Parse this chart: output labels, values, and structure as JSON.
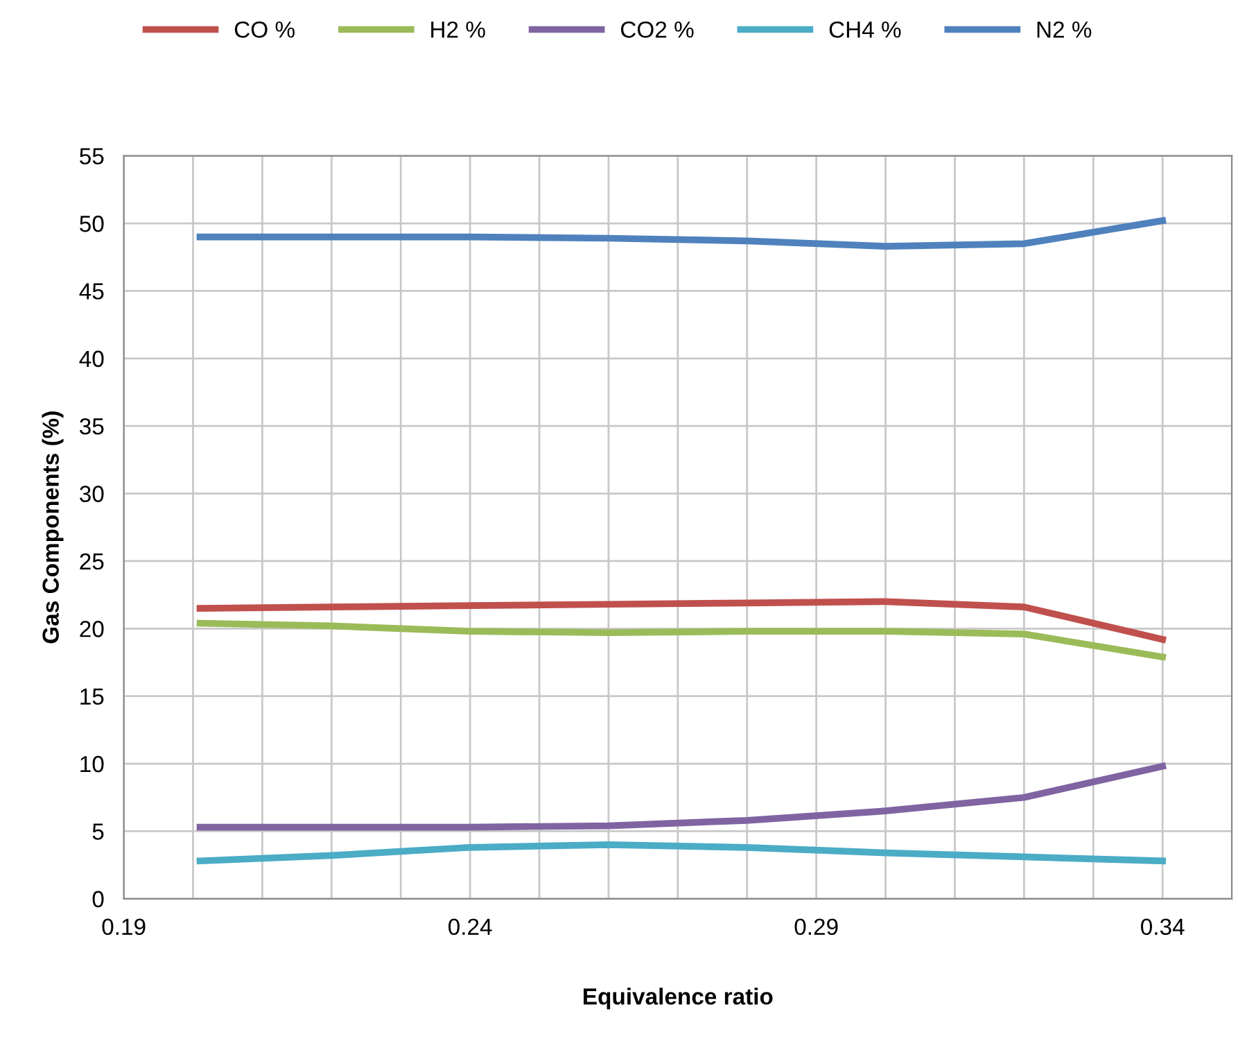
{
  "chart_data": {
    "type": "line",
    "xlabel": "Equivalence ratio",
    "ylabel": "Gas Components (%)",
    "x": [
      0.201,
      0.22,
      0.24,
      0.26,
      0.28,
      0.3,
      0.32,
      0.34
    ],
    "series": [
      {
        "name": "CO %",
        "color": "#c0504d",
        "values": [
          21.5,
          21.6,
          21.7,
          21.8,
          21.9,
          22.0,
          21.6,
          19.2
        ]
      },
      {
        "name": "H2 %",
        "color": "#9bbb59",
        "values": [
          20.4,
          20.2,
          19.8,
          19.7,
          19.8,
          19.8,
          19.6,
          17.9
        ]
      },
      {
        "name": "CO2 %",
        "color": "#8064a2",
        "values": [
          5.3,
          5.3,
          5.3,
          5.4,
          5.8,
          6.5,
          7.5,
          9.8
        ]
      },
      {
        "name": "CH4 %",
        "color": "#4bacc6",
        "values": [
          2.8,
          3.2,
          3.8,
          4.0,
          3.8,
          3.4,
          3.1,
          2.8
        ]
      },
      {
        "name": "N2 %",
        "color": "#4f81bd",
        "values": [
          49.0,
          49.0,
          49.0,
          48.9,
          48.7,
          48.3,
          48.5,
          50.2
        ]
      }
    ],
    "xlim": [
      0.19,
      0.35
    ],
    "xticks": [
      0.19,
      {
        "value": 0.2,
        "label": null
      },
      {
        "value": 0.21,
        "label": null
      },
      {
        "value": 0.22,
        "label": null
      },
      {
        "value": 0.23,
        "label": null
      },
      0.24,
      {
        "value": 0.25,
        "label": null
      },
      {
        "value": 0.26,
        "label": null
      },
      {
        "value": 0.27,
        "label": null
      },
      {
        "value": 0.28,
        "label": null
      },
      0.29,
      {
        "value": 0.3,
        "label": null
      },
      {
        "value": 0.31,
        "label": null
      },
      {
        "value": 0.32,
        "label": null
      },
      {
        "value": 0.33,
        "label": null
      },
      0.34
    ],
    "ylim": [
      0,
      55
    ],
    "yticks": [
      0,
      5,
      10,
      15,
      20,
      25,
      30,
      35,
      40,
      45,
      50,
      55
    ],
    "grid": true,
    "legend": "top",
    "marker": "none",
    "line_style": "solid"
  }
}
